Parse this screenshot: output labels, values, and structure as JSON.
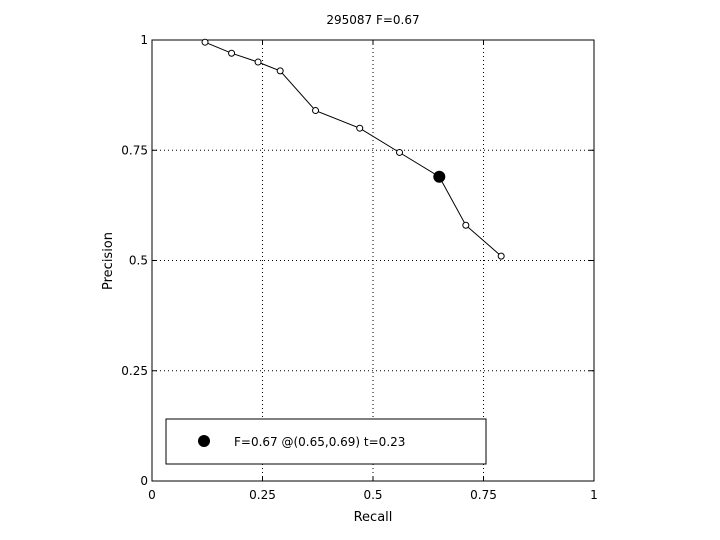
{
  "chart_data": {
    "type": "line",
    "title": "295087 F=0.67",
    "xlabel": "Recall",
    "ylabel": "Precision",
    "xlim": [
      0,
      1
    ],
    "ylim": [
      0,
      1
    ],
    "xticks": [
      0,
      0.25,
      0.5,
      0.75,
      1
    ],
    "xtick_labels": [
      "0",
      "0.25",
      "0.5",
      "0.75",
      "1"
    ],
    "yticks": [
      0,
      0.25,
      0.5,
      0.75,
      1
    ],
    "ytick_labels": [
      "0",
      "0.25",
      "0.5",
      "0.75",
      "1"
    ],
    "grid": true,
    "series": [
      {
        "x": [
          0.12,
          0.18,
          0.24,
          0.29,
          0.37,
          0.47,
          0.56,
          0.65,
          0.71,
          0.79
        ],
        "y": [
          0.995,
          0.97,
          0.95,
          0.93,
          0.84,
          0.8,
          0.745,
          0.69,
          0.58,
          0.51
        ],
        "color": "#000000",
        "marker": "open-circle"
      }
    ],
    "highlight_point": {
      "x": 0.65,
      "y": 0.69,
      "marker": "filled-circle",
      "color": "#000000"
    },
    "legend": {
      "location": "bottom-left",
      "text": "F=0.67 @(0.65,0.69) t=0.23"
    }
  }
}
